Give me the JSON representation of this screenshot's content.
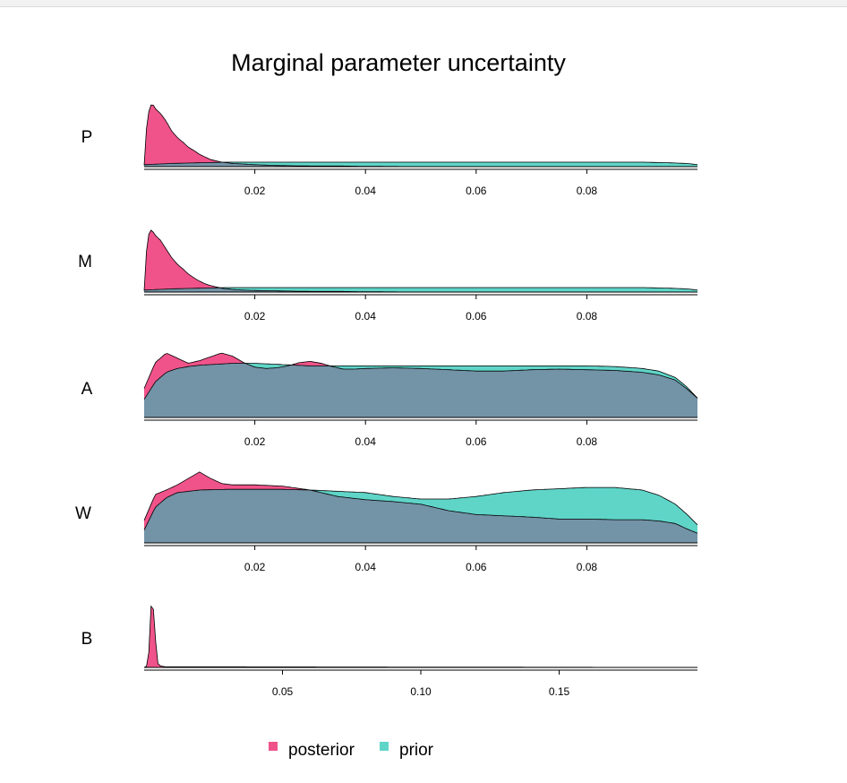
{
  "chart_data": {
    "type": "area",
    "title": "Marginal parameter uncertainty",
    "legend": {
      "position": "bottom",
      "entries": [
        {
          "name": "posterior",
          "color": "#f0538a"
        },
        {
          "name": "prior",
          "color": "#5fd5c8"
        }
      ],
      "overlap_color": "#7393a7"
    },
    "grid": false,
    "panels": [
      {
        "label": "P",
        "xlim": [
          0.0,
          0.1
        ],
        "ylim": [
          0,
          1
        ],
        "ticks": [
          0.02,
          0.04,
          0.06,
          0.08
        ],
        "tick_labels": [
          "0.02",
          "0.04",
          "0.06",
          "0.08"
        ],
        "series": [
          {
            "name": "posterior",
            "x": [
              0.0,
              0.0005,
              0.001,
              0.0015,
              0.002,
              0.003,
              0.004,
              0.005,
              0.006,
              0.007,
              0.008,
              0.009,
              0.01,
              0.011,
              0.012,
              0.013,
              0.014,
              0.015,
              0.016,
              0.018,
              0.02,
              0.023,
              0.026,
              0.03,
              0.035,
              0.04,
              0.05,
              0.06,
              0.07,
              0.08,
              0.09,
              0.1
            ],
            "y": [
              0.02,
              0.7,
              0.93,
              0.98,
              0.9,
              0.82,
              0.7,
              0.55,
              0.45,
              0.38,
              0.3,
              0.25,
              0.19,
              0.15,
              0.11,
              0.09,
              0.07,
              0.06,
              0.05,
              0.04,
              0.03,
              0.02,
              0.015,
              0.01,
              0.01,
              0.005,
              0.0,
              0.0,
              0.0,
              0.0,
              0.0,
              0.0
            ]
          },
          {
            "name": "prior",
            "x": [
              0.0,
              0.005,
              0.01,
              0.015,
              0.02,
              0.025,
              0.03,
              0.04,
              0.05,
              0.06,
              0.07,
              0.08,
              0.09,
              0.095,
              0.098,
              0.1
            ],
            "y": [
              0.03,
              0.05,
              0.06,
              0.07,
              0.07,
              0.07,
              0.07,
              0.07,
              0.07,
              0.07,
              0.07,
              0.07,
              0.07,
              0.06,
              0.05,
              0.03
            ]
          }
        ]
      },
      {
        "label": "M",
        "xlim": [
          0.0,
          0.1
        ],
        "ylim": [
          0,
          1
        ],
        "ticks": [
          0.02,
          0.04,
          0.06,
          0.08
        ],
        "tick_labels": [
          "0.02",
          "0.04",
          "0.06",
          "0.08"
        ],
        "series": [
          {
            "name": "posterior",
            "x": [
              0.0,
              0.0005,
              0.001,
              0.0015,
              0.002,
              0.003,
              0.004,
              0.005,
              0.006,
              0.007,
              0.008,
              0.009,
              0.01,
              0.011,
              0.012,
              0.013,
              0.014,
              0.015,
              0.016,
              0.018,
              0.02,
              0.023,
              0.026,
              0.03,
              0.035,
              0.04,
              0.05,
              0.06,
              0.07,
              0.08,
              0.09,
              0.1
            ],
            "y": [
              0.02,
              0.75,
              0.97,
              0.95,
              0.88,
              0.8,
              0.66,
              0.53,
              0.43,
              0.36,
              0.28,
              0.22,
              0.17,
              0.13,
              0.1,
              0.08,
              0.06,
              0.05,
              0.04,
              0.03,
              0.025,
              0.02,
              0.015,
              0.01,
              0.01,
              0.005,
              0.0,
              0.0,
              0.0,
              0.0,
              0.0,
              0.0
            ]
          },
          {
            "name": "prior",
            "x": [
              0.0,
              0.005,
              0.01,
              0.015,
              0.02,
              0.025,
              0.03,
              0.04,
              0.05,
              0.06,
              0.07,
              0.08,
              0.09,
              0.095,
              0.098,
              0.1
            ],
            "y": [
              0.03,
              0.05,
              0.06,
              0.07,
              0.07,
              0.07,
              0.07,
              0.07,
              0.07,
              0.07,
              0.07,
              0.07,
              0.07,
              0.06,
              0.05,
              0.03
            ]
          }
        ]
      },
      {
        "label": "A",
        "xlim": [
          0.0,
          0.1
        ],
        "ylim": [
          0,
          1
        ],
        "ticks": [
          0.02,
          0.04,
          0.06,
          0.08
        ],
        "tick_labels": [
          "0.02",
          "0.04",
          "0.06",
          "0.08"
        ],
        "series": [
          {
            "name": "posterior",
            "x": [
              0.0,
              0.002,
              0.004,
              0.006,
              0.008,
              0.01,
              0.012,
              0.014,
              0.016,
              0.018,
              0.02,
              0.022,
              0.024,
              0.026,
              0.028,
              0.03,
              0.032,
              0.034,
              0.036,
              0.038,
              0.04,
              0.045,
              0.05,
              0.055,
              0.06,
              0.065,
              0.07,
              0.075,
              0.08,
              0.085,
              0.09,
              0.093,
              0.096,
              0.098,
              0.1
            ],
            "y": [
              0.45,
              0.85,
              1.0,
              0.92,
              0.84,
              0.88,
              0.94,
              1.0,
              0.95,
              0.85,
              0.78,
              0.76,
              0.77,
              0.8,
              0.85,
              0.87,
              0.84,
              0.79,
              0.75,
              0.75,
              0.76,
              0.77,
              0.76,
              0.74,
              0.72,
              0.72,
              0.74,
              0.75,
              0.74,
              0.73,
              0.7,
              0.66,
              0.58,
              0.45,
              0.3
            ]
          },
          {
            "name": "prior",
            "x": [
              0.0,
              0.002,
              0.004,
              0.006,
              0.008,
              0.01,
              0.012,
              0.014,
              0.016,
              0.018,
              0.02,
              0.025,
              0.03,
              0.035,
              0.04,
              0.045,
              0.05,
              0.055,
              0.06,
              0.065,
              0.07,
              0.075,
              0.08,
              0.085,
              0.09,
              0.093,
              0.096,
              0.098,
              0.1
            ],
            "y": [
              0.28,
              0.55,
              0.7,
              0.76,
              0.79,
              0.81,
              0.82,
              0.83,
              0.84,
              0.84,
              0.84,
              0.82,
              0.8,
              0.8,
              0.8,
              0.8,
              0.8,
              0.8,
              0.8,
              0.8,
              0.8,
              0.8,
              0.8,
              0.79,
              0.76,
              0.72,
              0.62,
              0.48,
              0.3
            ]
          }
        ]
      },
      {
        "label": "W",
        "xlim": [
          0.0,
          0.1
        ],
        "ylim": [
          0,
          1
        ],
        "ticks": [
          0.02,
          0.04,
          0.06,
          0.08
        ],
        "tick_labels": [
          "0.02",
          "0.04",
          "0.06",
          "0.08"
        ],
        "series": [
          {
            "name": "posterior",
            "x": [
              0.0,
              0.002,
              0.004,
              0.006,
              0.008,
              0.01,
              0.012,
              0.014,
              0.016,
              0.018,
              0.02,
              0.025,
              0.03,
              0.035,
              0.04,
              0.045,
              0.05,
              0.055,
              0.06,
              0.065,
              0.07,
              0.075,
              0.08,
              0.085,
              0.09,
              0.093,
              0.096,
              0.098,
              0.1
            ],
            "y": [
              0.35,
              0.75,
              0.82,
              0.9,
              1.0,
              1.1,
              1.0,
              0.92,
              0.9,
              0.9,
              0.9,
              0.88,
              0.82,
              0.72,
              0.67,
              0.64,
              0.6,
              0.5,
              0.44,
              0.42,
              0.4,
              0.37,
              0.37,
              0.36,
              0.36,
              0.34,
              0.3,
              0.22,
              0.15
            ]
          },
          {
            "name": "prior",
            "x": [
              0.0,
              0.002,
              0.004,
              0.006,
              0.008,
              0.01,
              0.015,
              0.02,
              0.025,
              0.03,
              0.035,
              0.04,
              0.045,
              0.05,
              0.055,
              0.06,
              0.065,
              0.07,
              0.075,
              0.08,
              0.085,
              0.09,
              0.093,
              0.096,
              0.098,
              0.1
            ],
            "y": [
              0.2,
              0.55,
              0.7,
              0.78,
              0.8,
              0.82,
              0.83,
              0.83,
              0.83,
              0.82,
              0.8,
              0.78,
              0.72,
              0.68,
              0.68,
              0.72,
              0.78,
              0.82,
              0.84,
              0.86,
              0.86,
              0.82,
              0.74,
              0.6,
              0.45,
              0.28
            ]
          }
        ]
      },
      {
        "label": "B",
        "xlim": [
          0.0,
          0.2
        ],
        "ylim": [
          0,
          1
        ],
        "ticks": [
          0.05,
          0.1,
          0.15
        ],
        "tick_labels": [
          "0.05",
          "0.10",
          "0.15"
        ],
        "series": [
          {
            "name": "posterior",
            "x": [
              0.0,
              0.001,
              0.0015,
              0.002,
              0.0025,
              0.003,
              0.0035,
              0.004,
              0.0045,
              0.005,
              0.006,
              0.008,
              0.02,
              0.2
            ],
            "y": [
              0.0,
              0.02,
              0.1,
              0.5,
              0.95,
              1.0,
              0.85,
              0.5,
              0.2,
              0.06,
              0.02,
              0.01,
              0.01,
              0.0
            ]
          },
          {
            "name": "prior",
            "x": [
              0.0,
              0.2
            ],
            "y": [
              0.0,
              0.0
            ]
          }
        ]
      }
    ]
  }
}
